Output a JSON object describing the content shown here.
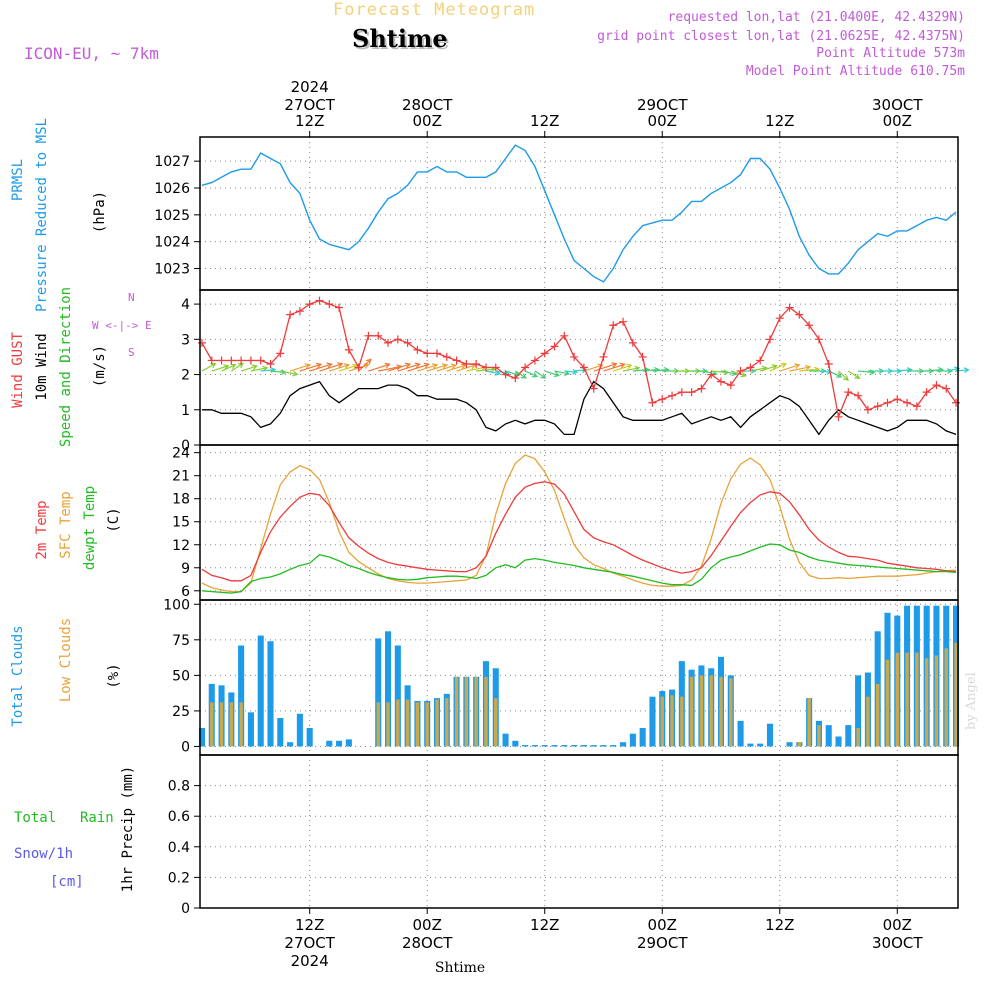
{
  "header": {
    "title": "Forecast Meteogram",
    "station": "Shtime",
    "model": "ICON-EU, ~ 7km",
    "requested": "requested lon,lat (21.0400E, 42.4329N)",
    "gridpoint": "grid point closest lon,lat (21.0625E, 42.4375N)",
    "point_alt": "Point Altitude 573m",
    "model_alt": "Model Point Altitude 610.75m"
  },
  "time_axis": {
    "top": {
      "year": "2024",
      "labels": [
        {
          "day": "27OCT",
          "hour": "12Z",
          "t": 12
        },
        {
          "day": "28OCT",
          "hour": "00Z",
          "t": 24
        },
        {
          "day": "",
          "hour": "12Z",
          "t": 36
        },
        {
          "day": "29OCT",
          "hour": "00Z",
          "t": 48
        },
        {
          "day": "",
          "hour": "12Z",
          "t": 60
        },
        {
          "day": "30OCT",
          "hour": "00Z",
          "t": 72
        }
      ]
    },
    "bottom": {
      "year": "2024",
      "station": "Shtime",
      "labels": [
        {
          "hour": "12Z",
          "day": "27OCT",
          "t": 12
        },
        {
          "hour": "00Z",
          "day": "28OCT",
          "t": 24
        },
        {
          "hour": "12Z",
          "day": "",
          "t": 36
        },
        {
          "hour": "00Z",
          "day": "29OCT",
          "t": 48
        },
        {
          "hour": "12Z",
          "day": "",
          "t": 60
        },
        {
          "hour": "00Z",
          "day": "30OCT",
          "t": 72
        }
      ]
    }
  },
  "panel_labels": {
    "pressure": {
      "name1": "PRMSL",
      "name2": "Pressure Reduced to MSL",
      "unit": "(hPa)"
    },
    "wind": {
      "gust": "Wind GUST",
      "wind10": "10m Wind",
      "dir": "Speed and Direction",
      "unit": "(m/s)",
      "compass_n": "N",
      "compass_s": "S",
      "compass_we": "W <-|-> E"
    },
    "temp": {
      "t2m": "2m Temp",
      "sfc": "SFC Temp",
      "dewpt": "dewpt Temp",
      "unit": "(C)"
    },
    "clouds": {
      "total": "Total Clouds",
      "low": "Low Clouds",
      "unit": "(%)"
    },
    "precip": {
      "total": "Total",
      "rain": "Rain",
      "snow": "Snow/1h",
      "snow_unit": "[cm]",
      "axis": "1hr Precip (mm)"
    }
  },
  "signature": "by Angel",
  "colors": {
    "pressure": "#1e9be8",
    "gust": "#ee3b3b",
    "wind": "#000000",
    "t2m": "#ee3b3b",
    "sfc": "#e8a33a",
    "dewpt": "#22bb22",
    "total_clouds": "#1e9be8",
    "low_clouds": "#c9a84e",
    "snow": "#5a5ae8",
    "label_purple": "#c25bd6"
  },
  "chart_data": [
    {
      "type": "line",
      "panel": "pressure",
      "title": "PRMSL Pressure Reduced to MSL",
      "ylabel": "(hPa)",
      "ylim": [
        1022.2,
        1027.9
      ],
      "yticks": [
        1023,
        1024,
        1025,
        1026,
        1027
      ],
      "x": [
        1,
        2,
        3,
        4,
        5,
        6,
        7,
        8,
        9,
        10,
        11,
        12,
        13,
        14,
        15,
        16,
        17,
        18,
        19,
        20,
        21,
        22,
        23,
        24,
        25,
        26,
        27,
        28,
        29,
        30,
        31,
        32,
        33,
        34,
        35,
        36,
        37,
        38,
        39,
        40,
        41,
        42,
        43,
        44,
        45,
        46,
        47,
        48,
        49,
        50,
        51,
        52,
        53,
        54,
        55,
        56,
        57,
        58,
        59,
        60,
        61,
        62,
        63,
        64,
        65,
        66,
        67,
        68,
        69,
        70,
        71,
        72,
        73,
        74,
        75,
        76,
        77,
        78
      ],
      "y": [
        1026.1,
        1026.2,
        1026.4,
        1026.6,
        1026.7,
        1026.7,
        1027.3,
        1027.1,
        1026.9,
        1026.2,
        1025.8,
        1024.8,
        1024.1,
        1023.9,
        1023.8,
        1023.7,
        1024.0,
        1024.5,
        1025.1,
        1025.6,
        1025.8,
        1026.1,
        1026.6,
        1026.6,
        1026.8,
        1026.6,
        1026.6,
        1026.4,
        1026.4,
        1026.4,
        1026.6,
        1027.1,
        1027.6,
        1027.4,
        1026.8,
        1025.9,
        1025.0,
        1024.1,
        1023.3,
        1023.0,
        1022.7,
        1022.5,
        1023.0,
        1023.7,
        1024.2,
        1024.6,
        1024.7,
        1024.8,
        1024.8,
        1025.1,
        1025.5,
        1025.5,
        1025.8,
        1026.0,
        1026.2,
        1026.5,
        1027.1,
        1027.1,
        1026.7,
        1026.0,
        1025.2,
        1024.2,
        1023.5,
        1023.0,
        1022.8,
        1022.8,
        1023.2,
        1023.7,
        1024.0,
        1024.3,
        1024.2,
        1024.4,
        1024.4,
        1024.6,
        1024.8,
        1024.9,
        1024.8,
        1025.1
      ]
    },
    {
      "type": "line",
      "panel": "wind",
      "title": "Wind GUST / 10m Wind Speed and Direction",
      "ylabel": "(m/s)",
      "ylim": [
        0,
        4.4
      ],
      "yticks": [
        0,
        1,
        2,
        3,
        4
      ],
      "x": [
        1,
        2,
        3,
        4,
        5,
        6,
        7,
        8,
        9,
        10,
        11,
        12,
        13,
        14,
        15,
        16,
        17,
        18,
        19,
        20,
        21,
        22,
        23,
        24,
        25,
        26,
        27,
        28,
        29,
        30,
        31,
        32,
        33,
        34,
        35,
        36,
        37,
        38,
        39,
        40,
        41,
        42,
        43,
        44,
        45,
        46,
        47,
        48,
        49,
        50,
        51,
        52,
        53,
        54,
        55,
        56,
        57,
        58,
        59,
        60,
        61,
        62,
        63,
        64,
        65,
        66,
        67,
        68,
        69,
        70,
        71,
        72,
        73,
        74,
        75,
        76,
        77,
        78
      ],
      "series": [
        {
          "name": "Wind GUST",
          "values": [
            2.9,
            2.4,
            2.4,
            2.4,
            2.4,
            2.4,
            2.4,
            2.3,
            2.6,
            3.7,
            3.8,
            4.0,
            4.1,
            4.0,
            3.9,
            2.7,
            2.2,
            3.1,
            3.1,
            2.9,
            3.0,
            2.9,
            2.7,
            2.6,
            2.6,
            2.5,
            2.4,
            2.3,
            2.3,
            2.2,
            2.2,
            2.0,
            1.9,
            2.2,
            2.4,
            2.6,
            2.8,
            3.1,
            2.5,
            2.2,
            1.6,
            2.5,
            3.4,
            3.5,
            2.9,
            2.5,
            1.2,
            1.3,
            1.4,
            1.5,
            1.5,
            1.6,
            2.0,
            1.8,
            1.7,
            2.1,
            2.2,
            2.4,
            3.0,
            3.6,
            3.9,
            3.7,
            3.4,
            3.0,
            2.3,
            0.8,
            1.5,
            1.4,
            1.0,
            1.1,
            1.2,
            1.3,
            1.2,
            1.1,
            1.5,
            1.7,
            1.6,
            1.2
          ]
        },
        {
          "name": "10m Wind",
          "values": [
            1.0,
            1.0,
            0.9,
            0.9,
            0.9,
            0.8,
            0.5,
            0.6,
            0.9,
            1.4,
            1.6,
            1.7,
            1.8,
            1.4,
            1.2,
            1.4,
            1.6,
            1.6,
            1.6,
            1.7,
            1.7,
            1.6,
            1.4,
            1.4,
            1.3,
            1.3,
            1.3,
            1.2,
            1.0,
            0.5,
            0.4,
            0.6,
            0.7,
            0.6,
            0.7,
            0.7,
            0.6,
            0.3,
            0.3,
            1.3,
            1.8,
            1.6,
            1.2,
            0.8,
            0.7,
            0.7,
            0.7,
            0.7,
            0.8,
            0.9,
            0.6,
            0.7,
            0.8,
            0.7,
            0.8,
            0.5,
            0.8,
            1.0,
            1.2,
            1.4,
            1.3,
            1.1,
            0.7,
            0.3,
            0.7,
            1.0,
            0.8,
            0.7,
            0.6,
            0.5,
            0.4,
            0.5,
            0.7,
            0.7,
            0.7,
            0.6,
            0.4,
            0.3
          ]
        }
      ],
      "direction_deg": [
        45,
        60,
        50,
        40,
        60,
        70,
        80,
        100,
        110,
        60,
        60,
        60,
        60,
        60,
        60,
        60,
        30,
        60,
        70,
        60,
        60,
        60,
        60,
        60,
        60,
        60,
        60,
        70,
        80,
        110,
        110,
        120,
        140,
        130,
        140,
        120,
        110,
        100,
        80,
        60,
        60,
        60,
        60,
        70,
        80,
        80,
        80,
        90,
        90,
        90,
        90,
        110,
        100,
        110,
        120,
        90,
        70,
        60,
        50,
        60,
        70,
        80,
        90,
        100,
        130,
        150,
        140,
        100,
        90,
        90,
        90,
        80,
        90,
        90,
        80,
        90,
        70,
        80
      ]
    },
    {
      "type": "line",
      "panel": "temperature",
      "title": "2m Temp / SFC Temp / dewpt Temp",
      "ylabel": "(C)",
      "ylim": [
        4.8,
        25
      ],
      "yticks": [
        6,
        9,
        12,
        15,
        18,
        21,
        24
      ],
      "x": [
        1,
        2,
        3,
        4,
        5,
        6,
        7,
        8,
        9,
        10,
        11,
        12,
        13,
        14,
        15,
        16,
        17,
        18,
        19,
        20,
        21,
        22,
        23,
        24,
        25,
        26,
        27,
        28,
        29,
        30,
        31,
        32,
        33,
        34,
        35,
        36,
        37,
        38,
        39,
        40,
        41,
        42,
        43,
        44,
        45,
        46,
        47,
        48,
        49,
        50,
        51,
        52,
        53,
        54,
        55,
        56,
        57,
        58,
        59,
        60,
        61,
        62,
        63,
        64,
        65,
        66,
        67,
        68,
        69,
        70,
        71,
        72,
        73,
        74,
        75,
        76,
        77,
        78
      ],
      "series": [
        {
          "name": "2m Temp",
          "values": [
            8.8,
            8.0,
            7.7,
            7.3,
            7.3,
            8.0,
            11.0,
            13.7,
            15.6,
            17.0,
            18.2,
            18.7,
            18.5,
            17.1,
            14.9,
            12.9,
            11.8,
            10.9,
            10.2,
            9.7,
            9.4,
            9.2,
            9.0,
            8.8,
            8.7,
            8.6,
            8.5,
            8.5,
            9.0,
            10.5,
            13.5,
            16.0,
            18.2,
            19.5,
            20.0,
            20.2,
            19.9,
            18.6,
            16.3,
            14.0,
            12.9,
            12.4,
            12.0,
            11.3,
            10.6,
            10.0,
            9.5,
            9.0,
            8.6,
            8.3,
            8.5,
            9.0,
            10.6,
            12.5,
            14.4,
            16.2,
            17.5,
            18.5,
            18.9,
            18.7,
            17.6,
            15.9,
            14.0,
            12.6,
            11.7,
            11.0,
            10.5,
            10.4,
            10.2,
            10.0,
            9.6,
            9.4,
            9.2,
            9.0,
            8.9,
            8.8,
            8.6,
            8.5
          ]
        },
        {
          "name": "SFC Temp",
          "values": [
            7.0,
            6.4,
            6.1,
            5.9,
            5.9,
            7.0,
            11.5,
            16.0,
            19.8,
            21.5,
            22.3,
            21.8,
            20.5,
            17.5,
            13.7,
            11.0,
            9.8,
            9.0,
            8.2,
            7.6,
            7.3,
            7.1,
            7.0,
            7.0,
            7.1,
            7.2,
            7.3,
            7.4,
            8.0,
            10.6,
            16.0,
            20.0,
            22.6,
            23.7,
            23.2,
            21.5,
            19.1,
            15.4,
            12.0,
            10.3,
            9.4,
            8.9,
            8.3,
            7.9,
            7.4,
            7.0,
            6.7,
            6.6,
            6.6,
            6.7,
            7.4,
            9.2,
            12.8,
            17.4,
            20.6,
            22.5,
            23.3,
            22.4,
            20.5,
            17.0,
            12.7,
            9.7,
            8.0,
            7.6,
            7.6,
            7.7,
            7.6,
            7.7,
            7.8,
            7.9,
            7.9,
            7.9,
            8.0,
            8.1,
            8.3,
            8.5,
            8.6,
            8.7
          ]
        },
        {
          "name": "dewpt Temp",
          "values": [
            6.0,
            5.9,
            5.8,
            5.7,
            5.9,
            7.2,
            7.6,
            7.8,
            8.2,
            8.8,
            9.3,
            9.6,
            10.7,
            10.4,
            9.9,
            9.3,
            8.9,
            8.4,
            8.0,
            7.7,
            7.5,
            7.4,
            7.5,
            7.7,
            7.8,
            7.9,
            7.9,
            7.8,
            7.6,
            8.0,
            9.0,
            9.4,
            9.0,
            10.0,
            10.2,
            10.0,
            9.7,
            9.5,
            9.3,
            9.0,
            8.8,
            8.6,
            8.4,
            8.1,
            7.9,
            7.6,
            7.3,
            7.0,
            6.8,
            6.8,
            6.7,
            7.5,
            9.0,
            10.0,
            10.4,
            10.7,
            11.2,
            11.7,
            12.1,
            12.0,
            11.3,
            11.0,
            10.4,
            10.0,
            9.8,
            9.6,
            9.4,
            9.3,
            9.2,
            9.1,
            9.0,
            8.9,
            8.8,
            8.7,
            8.6,
            8.5,
            8.5,
            8.4
          ]
        }
      ]
    },
    {
      "type": "bar",
      "panel": "clouds",
      "title": "Total Clouds / Low Clouds",
      "ylabel": "(%)",
      "ylim": [
        -6,
        103
      ],
      "yticks": [
        0,
        25,
        50,
        75,
        100
      ],
      "x": [
        1,
        2,
        3,
        4,
        5,
        6,
        7,
        8,
        9,
        10,
        11,
        12,
        13,
        14,
        15,
        16,
        17,
        18,
        19,
        20,
        21,
        22,
        23,
        24,
        25,
        26,
        27,
        28,
        29,
        30,
        31,
        32,
        33,
        34,
        35,
        36,
        37,
        38,
        39,
        40,
        41,
        42,
        43,
        44,
        45,
        46,
        47,
        48,
        49,
        50,
        51,
        52,
        53,
        54,
        55,
        56,
        57,
        58,
        59,
        60,
        61,
        62,
        63,
        64,
        65,
        66,
        67,
        68,
        69,
        70,
        71,
        72,
        73,
        74,
        75,
        76,
        77,
        78
      ],
      "series": [
        {
          "name": "Total Clouds",
          "values": [
            13,
            44,
            43,
            38,
            71,
            24,
            78,
            74,
            20,
            3,
            23,
            13,
            0,
            4,
            4,
            5,
            0,
            0,
            76,
            81,
            71,
            43,
            32,
            32,
            34,
            37,
            49,
            49,
            49,
            60,
            55,
            9,
            4,
            1,
            1,
            1,
            1,
            1,
            1,
            1,
            1,
            1,
            1,
            3,
            9,
            13,
            35,
            39,
            40,
            60,
            54,
            57,
            55,
            63,
            50,
            18,
            2,
            2,
            16,
            0,
            3,
            3,
            34,
            18,
            15,
            7,
            15,
            50,
            52,
            81,
            94,
            92,
            99,
            99,
            99,
            99,
            99,
            99
          ]
        },
        {
          "name": "Low Clouds",
          "values": [
            0,
            31,
            31,
            31,
            31,
            0,
            0,
            0,
            0,
            0,
            0,
            0,
            0,
            0,
            0,
            0,
            0,
            0,
            31,
            31,
            33,
            33,
            31,
            31,
            33,
            34,
            49,
            49,
            49,
            49,
            34,
            0,
            0,
            0,
            0,
            0,
            0,
            0,
            0,
            0,
            0,
            0,
            0,
            0,
            0,
            0,
            0,
            35,
            36,
            35,
            49,
            50,
            50,
            49,
            48,
            0,
            0,
            0,
            0,
            0,
            0,
            3,
            34,
            15,
            0,
            0,
            0,
            13,
            35,
            44,
            61,
            66,
            66,
            66,
            62,
            64,
            69,
            73
          ]
        }
      ]
    },
    {
      "type": "line",
      "panel": "precipitation",
      "title": "Total Rain / Snow/1h",
      "ylabel": "1hr Precip (mm)",
      "ylim": [
        0,
        1.0
      ],
      "yticks": [
        0,
        0.2,
        0.4,
        0.6,
        0.8
      ],
      "series": [
        {
          "name": "Total Rain",
          "values": []
        }
      ]
    }
  ]
}
